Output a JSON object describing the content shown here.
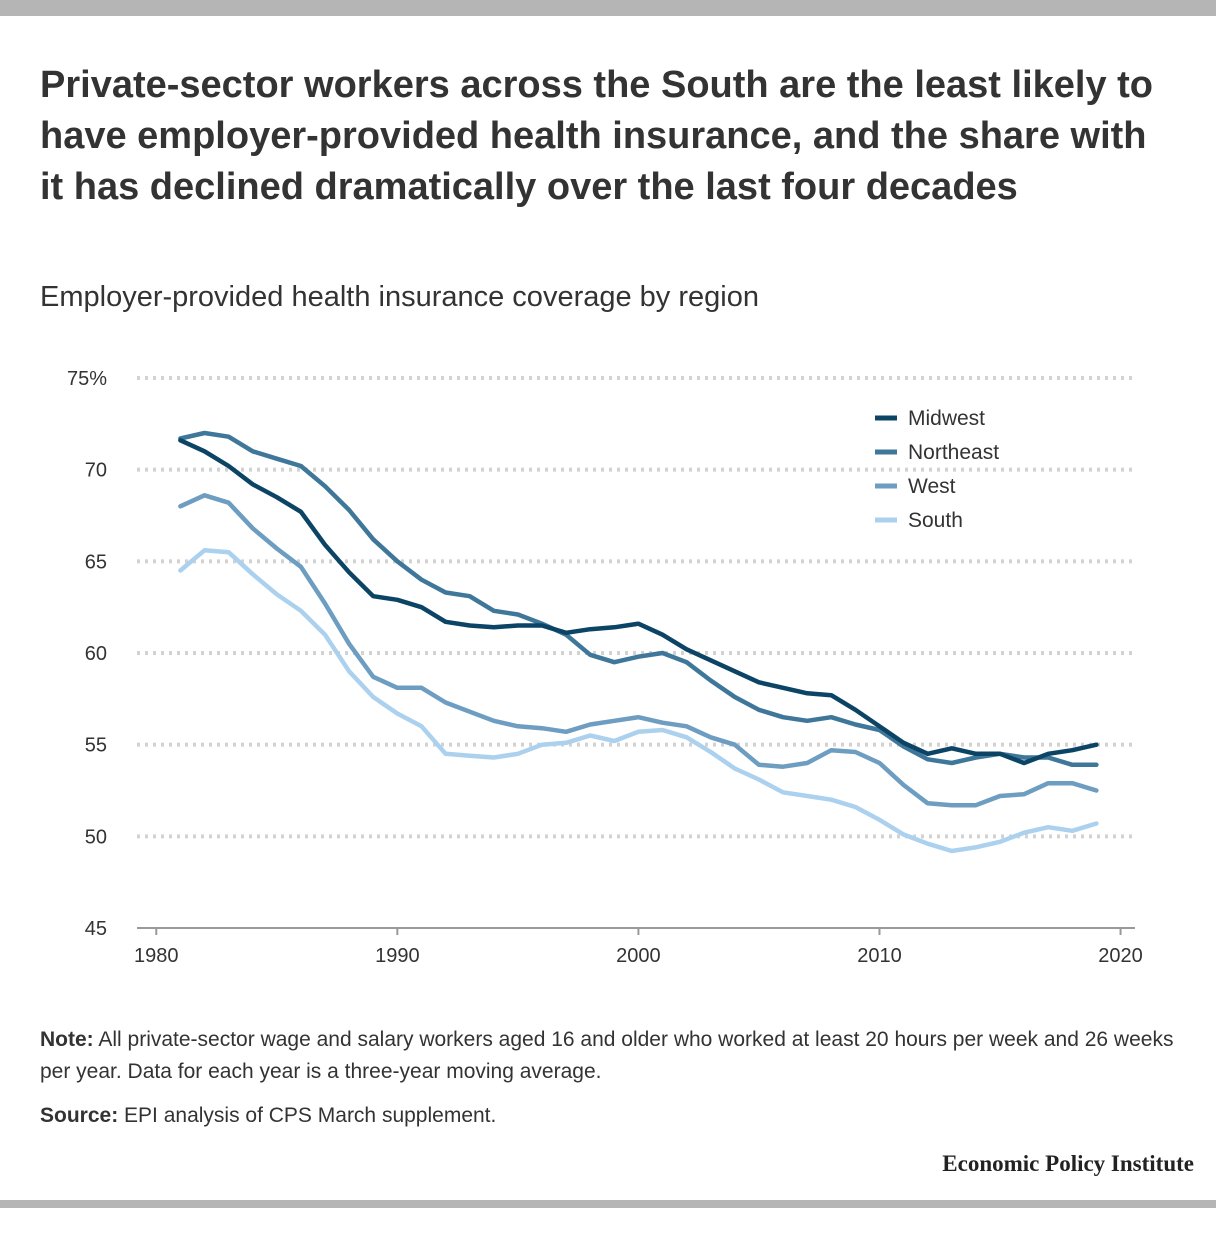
{
  "title": "Private-sector workers across the South are the least likely to have employer-provided health insurance, and the share with it has declined dramatically over the last four decades",
  "subtitle": "Employer-provided health insurance coverage by region",
  "note": {
    "label": "Note:",
    "text": " All private-sector wage and salary workers aged 16 and older who worked at least 20 hours per week and 26 weeks per year. Data for each year is a three-year moving average."
  },
  "source": {
    "label": "Source:",
    "text": " EPI analysis of CPS March supplement."
  },
  "organization": "Economic Policy Institute",
  "colors": {
    "midwest": "#0b4465",
    "northeast": "#3e7799",
    "west": "#6d9dc1",
    "south": "#acd1ee",
    "grid": "#d2d2d2",
    "top_bar": "#b5b5b5"
  },
  "chart_data": {
    "type": "line",
    "title": "Employer-provided health insurance coverage by region",
    "xlabel": "",
    "ylabel": "",
    "xlim": [
      1979.2,
      2020.6
    ],
    "ylim": [
      45,
      75
    ],
    "grid": "horizontal dotted",
    "legend": "top-right",
    "x_ticks": [
      {
        "value": 1980,
        "label": "1980"
      },
      {
        "value": 1990,
        "label": "1990"
      },
      {
        "value": 2000,
        "label": "2000"
      },
      {
        "value": 2010,
        "label": "2010"
      },
      {
        "value": 2020,
        "label": "2020"
      }
    ],
    "y_ticks": [
      {
        "value": 45,
        "label": "45"
      },
      {
        "value": 50,
        "label": "50"
      },
      {
        "value": 55,
        "label": "55"
      },
      {
        "value": 60,
        "label": "60"
      },
      {
        "value": 65,
        "label": "65"
      },
      {
        "value": 70,
        "label": "70"
      },
      {
        "value": 75,
        "label": "75%"
      }
    ],
    "x": [
      1981,
      1982,
      1983,
      1984,
      1985,
      1986,
      1987,
      1988,
      1989,
      1990,
      1991,
      1992,
      1993,
      1994,
      1995,
      1996,
      1997,
      1998,
      1999,
      2000,
      2001,
      2002,
      2003,
      2004,
      2005,
      2006,
      2007,
      2008,
      2009,
      2010,
      2011,
      2012,
      2013,
      2014,
      2015,
      2016,
      2017,
      2018,
      2019
    ],
    "series": [
      {
        "name": "Midwest",
        "color": "#0b4465",
        "values": [
          71.6,
          71.0,
          70.2,
          69.2,
          68.5,
          67.7,
          65.9,
          64.4,
          63.1,
          62.9,
          62.5,
          61.7,
          61.5,
          61.4,
          61.5,
          61.5,
          61.1,
          61.3,
          61.4,
          61.6,
          61.0,
          60.2,
          59.6,
          59.0,
          58.4,
          58.1,
          57.8,
          57.7,
          56.9,
          56.0,
          55.1,
          54.5,
          54.8,
          54.5,
          54.5,
          54.0,
          54.5,
          54.7,
          55.0
        ]
      },
      {
        "name": "Northeast",
        "color": "#3e7799",
        "values": [
          71.7,
          72.0,
          71.8,
          71.0,
          70.6,
          70.2,
          69.1,
          67.8,
          66.2,
          65.0,
          64.0,
          63.3,
          63.1,
          62.3,
          62.1,
          61.6,
          61.0,
          59.9,
          59.5,
          59.8,
          60.0,
          59.5,
          58.5,
          57.6,
          56.9,
          56.5,
          56.3,
          56.5,
          56.1,
          55.8,
          54.9,
          54.2,
          54.0,
          54.3,
          54.5,
          54.3,
          54.3,
          53.9,
          53.9
        ]
      },
      {
        "name": "West",
        "color": "#6d9dc1",
        "values": [
          68.0,
          68.6,
          68.2,
          66.8,
          65.7,
          64.7,
          62.7,
          60.5,
          58.7,
          58.1,
          58.1,
          57.3,
          56.8,
          56.3,
          56.0,
          55.9,
          55.7,
          56.1,
          56.3,
          56.5,
          56.2,
          56.0,
          55.4,
          55.0,
          53.9,
          53.8,
          54.0,
          54.7,
          54.6,
          54.0,
          52.8,
          51.8,
          51.7,
          51.7,
          52.2,
          52.3,
          52.9,
          52.9,
          52.5
        ]
      },
      {
        "name": "South",
        "color": "#acd1ee",
        "values": [
          64.5,
          65.6,
          65.5,
          64.3,
          63.2,
          62.3,
          61.0,
          59.0,
          57.6,
          56.7,
          56.0,
          54.5,
          54.4,
          54.3,
          54.5,
          55.0,
          55.1,
          55.5,
          55.2,
          55.7,
          55.8,
          55.4,
          54.6,
          53.7,
          53.1,
          52.4,
          52.2,
          52.0,
          51.6,
          50.9,
          50.1,
          49.6,
          49.2,
          49.4,
          49.7,
          50.2,
          50.5,
          50.3,
          50.7
        ]
      }
    ]
  }
}
